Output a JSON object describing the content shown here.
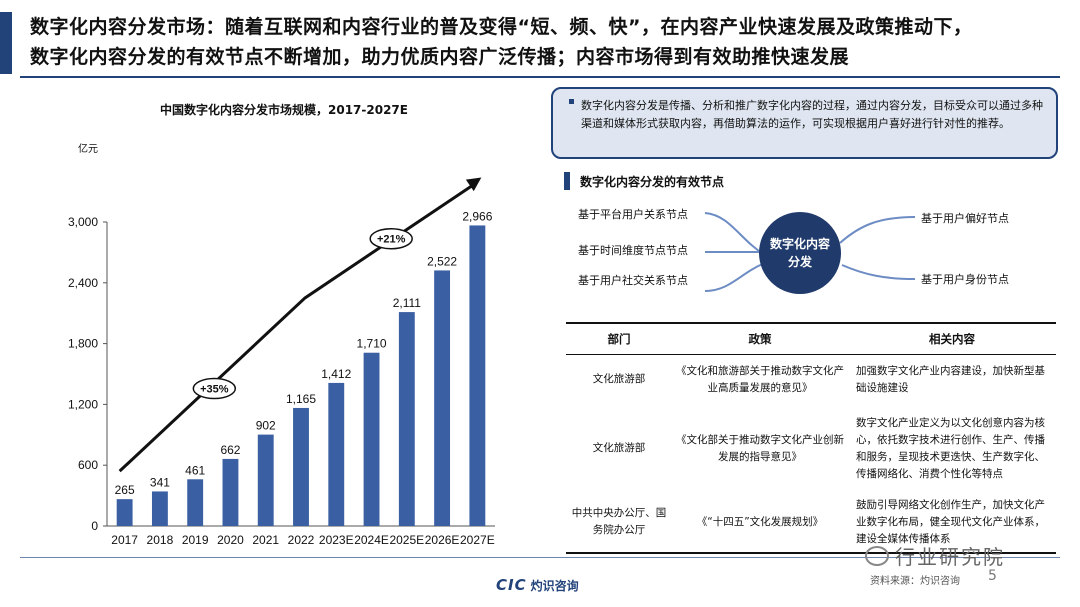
{
  "header": {
    "line1": "数字化内容分发市场：随着互联网和内容行业的普及变得“短、频、快”，在内容产业快速发展及政策推动下，",
    "line2": "数字化内容分发的有效节点不断增加，助力优质内容广泛传播；内容市场得到有效助推快速发展"
  },
  "chart_data": {
    "type": "bar",
    "title": "中国数字化内容分发市场规模，2017-2027E",
    "ylabel": "亿元",
    "xlabel": "",
    "categories": [
      "2017",
      "2018",
      "2019",
      "2020",
      "2021",
      "2022",
      "2023E",
      "2024E",
      "2025E",
      "2026E",
      "2027E"
    ],
    "values": [
      265,
      341,
      461,
      662,
      902,
      1165,
      1412,
      1710,
      2111,
      2522,
      2966
    ],
    "value_labels": [
      "265",
      "341",
      "461",
      "662",
      "902",
      "1,165",
      "1,412",
      "1,710",
      "2,111",
      "2,522",
      "2,966"
    ],
    "ylim": [
      0,
      3000
    ],
    "yticks": [
      0,
      600,
      1200,
      1800,
      2400,
      3000
    ],
    "ytick_labels": [
      "0",
      "600",
      "1,200",
      "1,800",
      "2,400",
      "3,000"
    ],
    "grid": false,
    "bar_color": "#3b5fa3",
    "annotations": [
      {
        "text": "+35%",
        "period": "2017-2022"
      },
      {
        "text": "+21%",
        "period": "2022-2027E"
      }
    ]
  },
  "info_box": {
    "text": "数字化内容分发是传播、分析和推广数字化内容的过程，通过内容分发，目标受众可以通过多种渠道和媒体形式获取内容，再借助算法的运作，可实现根据用户喜好进行针对性的推荐。"
  },
  "nodes_section": {
    "title": "数字化内容分发的有效节点",
    "hub": "数字化内容分发",
    "left": [
      "基于平台用户关系节点",
      "基于时间维度节点节点",
      "基于用户社交关系节点"
    ],
    "right": [
      "基于用户偏好节点",
      "基于用户身份节点"
    ]
  },
  "policy_table": {
    "headers": [
      "部门",
      "政策",
      "相关内容"
    ],
    "rows": [
      {
        "dept": "文化旅游部",
        "policy": "《文化和旅游部关于推动数字文化产业高质量发展的意见》",
        "content": "加强数字文化产业内容建设，加快新型基础设施建设"
      },
      {
        "dept": "文化旅游部",
        "policy": "《文化部关于推动数字文化产业创新发展的指导意见》",
        "content": "数字文化产业定义为以文化创意内容为核心，依托数字技术进行创作、生产、传播和服务，呈现技术更迭快、生产数字化、传播网络化、消费个性化等特点"
      },
      {
        "dept": "中共中央办公厅、国务院办公厅",
        "policy": "《“十四五”文化发展规划》",
        "content": "鼓励引导网络文化创作生产，加快文化产业数字化布局，健全现代文化产业体系，建设全媒体传播体系"
      }
    ]
  },
  "footer": {
    "logo_mark": "CIC",
    "logo_text": "灼识咨询",
    "source": "资料来源：灼识咨询",
    "page": "5",
    "badge": "行业研究院"
  },
  "colors": {
    "brand": "#22427a",
    "bar": "#3b5fa3",
    "hub": "#1f3a6b",
    "info_bg": "#dfe6f1"
  }
}
